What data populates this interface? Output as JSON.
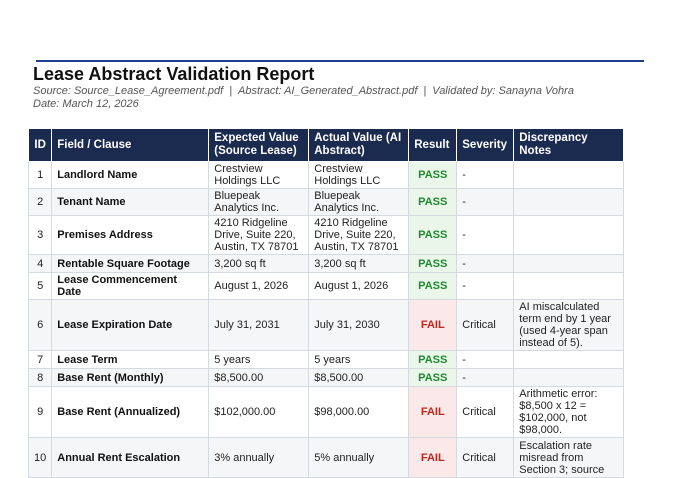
{
  "report": {
    "title": "Lease Abstract Validation Report",
    "source": "Source: Source_Lease_Agreement.pdf",
    "abstract": "Abstract: AI_Generated_Abstract.pdf",
    "validated_by": "Validated by: Sanayna Vohra",
    "date": "Date: March 12, 2026",
    "separator": "|"
  },
  "columns": {
    "id": "ID",
    "field": "Field / Clause",
    "expected_1": "Expected Value",
    "expected_2": "(Source Lease)",
    "actual_1": "Actual Value (AI",
    "actual_2": "Abstract)",
    "result": "Result",
    "severity": "Severity",
    "notes_1": "Discrepancy",
    "notes_2": "Notes"
  },
  "rows": [
    {
      "id": "1",
      "field": "Landlord Name",
      "expected": "Crestview Holdings LLC",
      "actual": "Crestview Holdings LLC",
      "result": "PASS",
      "severity": "-",
      "notes": ""
    },
    {
      "id": "2",
      "field": "Tenant Name",
      "expected": "Bluepeak Analytics Inc.",
      "actual": "Bluepeak Analytics Inc.",
      "result": "PASS",
      "severity": "-",
      "notes": ""
    },
    {
      "id": "3",
      "field": "Premises Address",
      "expected": "4210 Ridgeline Drive, Suite 220, Austin, TX 78701",
      "actual": "4210 Ridgeline Drive, Suite 220, Austin, TX 78701",
      "result": "PASS",
      "severity": "-",
      "notes": ""
    },
    {
      "id": "4",
      "field": "Rentable Square Footage",
      "expected": "3,200 sq ft",
      "actual": "3,200 sq ft",
      "result": "PASS",
      "severity": "-",
      "notes": ""
    },
    {
      "id": "5",
      "field": "Lease Commencement Date",
      "expected": "August 1, 2026",
      "actual": "August 1, 2026",
      "result": "PASS",
      "severity": "-",
      "notes": ""
    },
    {
      "id": "6",
      "field": "Lease Expiration Date",
      "expected": "July 31, 2031",
      "actual": "July 31, 2030",
      "result": "FAIL",
      "severity": "Critical",
      "notes": "AI miscalculated term end by 1 year (used 4-year span instead of 5)."
    },
    {
      "id": "7",
      "field": "Lease Term",
      "expected": "5 years",
      "actual": "5 years",
      "result": "PASS",
      "severity": "-",
      "notes": ""
    },
    {
      "id": "8",
      "field": "Base Rent (Monthly)",
      "expected": "$8,500.00",
      "actual": "$8,500.00",
      "result": "PASS",
      "severity": "-",
      "notes": ""
    },
    {
      "id": "9",
      "field": "Base Rent (Annualized)",
      "expected": "$102,000.00",
      "actual": "$98,000.00",
      "result": "FAIL",
      "severity": "Critical",
      "notes": "Arithmetic error: $8,500 x 12 = $102,000, not $98,000."
    },
    {
      "id": "10",
      "field": "Annual Rent Escalation",
      "expected": "3% annually",
      "actual": "5% annually",
      "result": "FAIL",
      "severity": "Critical",
      "notes": "Escalation rate misread from Section 3; source"
    }
  ]
}
